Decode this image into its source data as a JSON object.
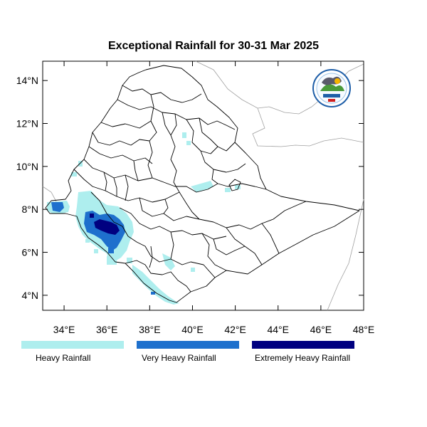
{
  "title": "Exceptional Rainfall for 30-31 Mar 2025",
  "axes": {
    "x_ticks": [
      {
        "value": 34,
        "label": "34°E"
      },
      {
        "value": 36,
        "label": "36°E"
      },
      {
        "value": 38,
        "label": "38°E"
      },
      {
        "value": 40,
        "label": "40°E"
      },
      {
        "value": 42,
        "label": "42°E"
      },
      {
        "value": 44,
        "label": "44°E"
      },
      {
        "value": 46,
        "label": "46°E"
      },
      {
        "value": 48,
        "label": "48°E"
      }
    ],
    "y_ticks": [
      {
        "value": 4,
        "label": "4°N"
      },
      {
        "value": 6,
        "label": "6°N"
      },
      {
        "value": 8,
        "label": "8°N"
      },
      {
        "value": 10,
        "label": "10°N"
      },
      {
        "value": 12,
        "label": "12°N"
      },
      {
        "value": 14,
        "label": "14°N"
      }
    ],
    "lon_range": [
      33,
      48
    ],
    "lat_range": [
      3.3,
      14.9
    ]
  },
  "legend": [
    {
      "label": "Heavy Rainfall",
      "color": "#aeeeee"
    },
    {
      "label": "Very Heavy Rainfall",
      "color": "#1e70cd"
    },
    {
      "label": "Extremely Heavy Rainfall",
      "color": "#000080"
    }
  ],
  "logo": {
    "icon": "meteorology-agency-logo"
  }
}
